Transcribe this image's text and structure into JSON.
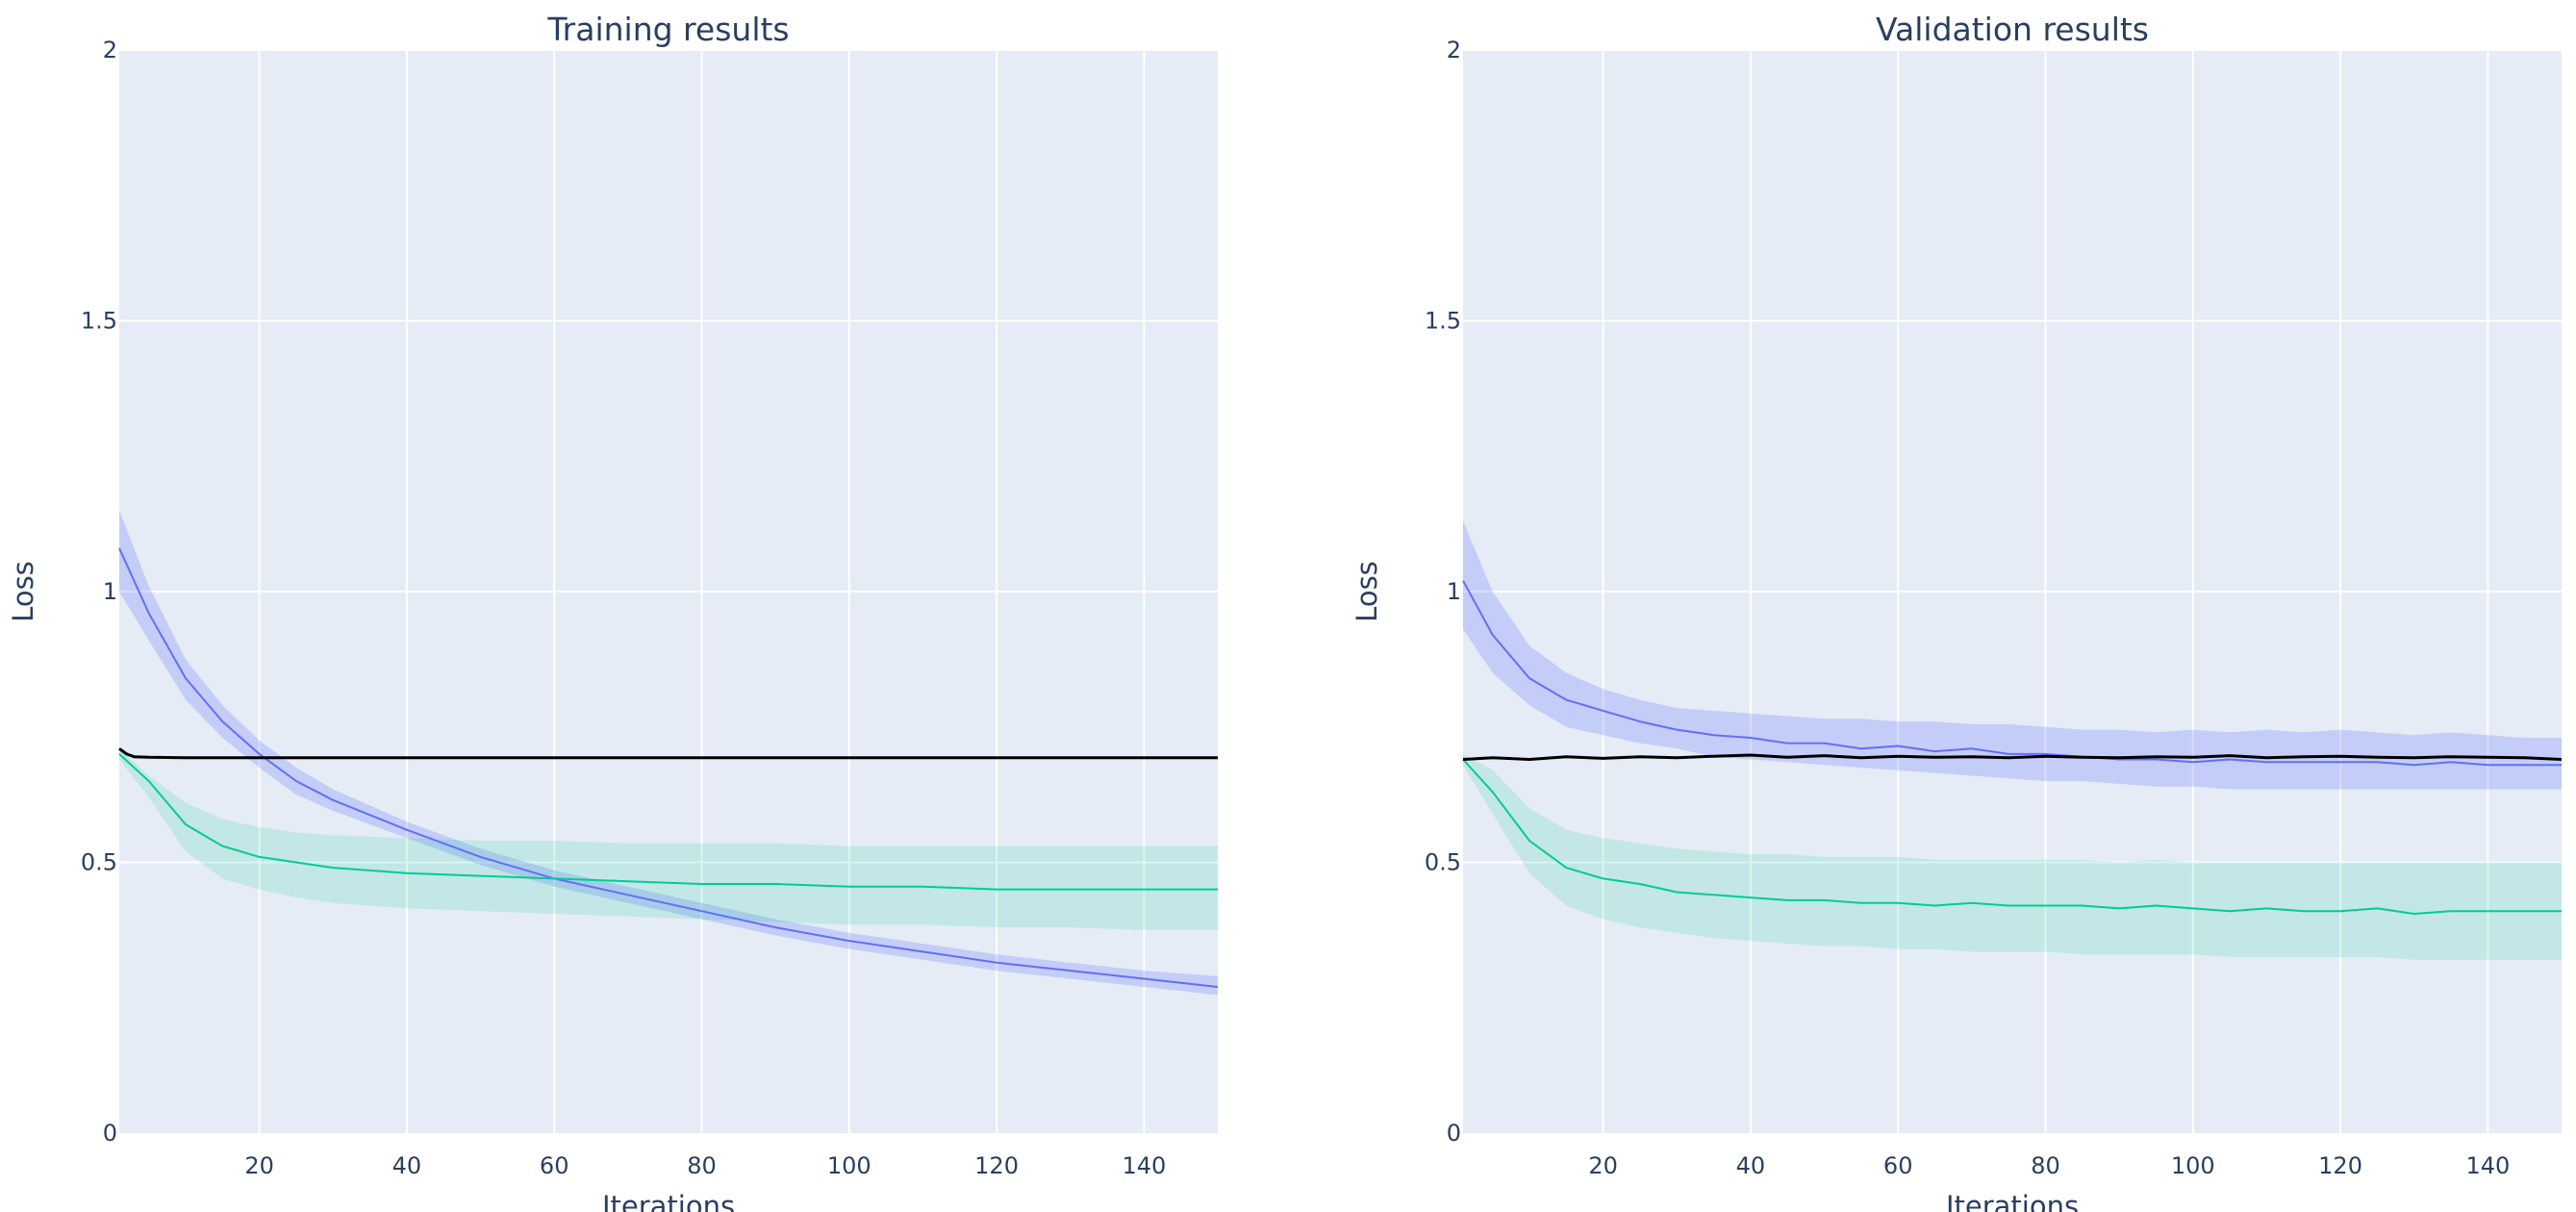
{
  "chart_data": [
    {
      "type": "line",
      "title": "Training results",
      "xlabel": "Iterations",
      "ylabel": "Loss",
      "xlim": [
        1,
        150
      ],
      "ylim": [
        0,
        2
      ],
      "xticks": [
        20,
        40,
        60,
        80,
        100,
        120,
        140
      ],
      "yticks": [
        0,
        0.5,
        1,
        1.5,
        2
      ],
      "ytick_labels": [
        "0",
        "0.5",
        "1",
        "1.5",
        "2"
      ],
      "grid": true,
      "legend": "none",
      "series": [
        {
          "color": "#636efa",
          "x": [
            1,
            5,
            10,
            15,
            20,
            25,
            30,
            40,
            50,
            60,
            70,
            80,
            90,
            100,
            110,
            120,
            130,
            140,
            150
          ],
          "y": [
            1.08,
            0.96,
            0.84,
            0.76,
            0.7,
            0.65,
            0.615,
            0.56,
            0.51,
            0.47,
            0.44,
            0.41,
            0.38,
            0.355,
            0.335,
            0.315,
            0.3,
            0.285,
            0.27
          ],
          "band_upper": [
            1.15,
            1.01,
            0.875,
            0.79,
            0.725,
            0.675,
            0.635,
            0.575,
            0.525,
            0.485,
            0.455,
            0.425,
            0.395,
            0.37,
            0.35,
            0.33,
            0.315,
            0.3,
            0.29
          ],
          "band_lower": [
            1.0,
            0.91,
            0.8,
            0.73,
            0.675,
            0.625,
            0.595,
            0.545,
            0.495,
            0.455,
            0.425,
            0.395,
            0.365,
            0.34,
            0.32,
            0.3,
            0.285,
            0.27,
            0.255
          ]
        },
        {
          "color": "#00cc96",
          "x": [
            1,
            5,
            10,
            15,
            20,
            25,
            30,
            40,
            50,
            60,
            70,
            80,
            90,
            100,
            110,
            120,
            130,
            140,
            150
          ],
          "y": [
            0.7,
            0.65,
            0.57,
            0.53,
            0.51,
            0.5,
            0.49,
            0.48,
            0.475,
            0.47,
            0.465,
            0.46,
            0.46,
            0.455,
            0.455,
            0.45,
            0.45,
            0.45,
            0.45
          ],
          "band_upper": [
            0.71,
            0.66,
            0.61,
            0.58,
            0.565,
            0.555,
            0.55,
            0.545,
            0.54,
            0.54,
            0.535,
            0.535,
            0.535,
            0.53,
            0.53,
            0.53,
            0.53,
            0.53,
            0.53
          ],
          "band_lower": [
            0.69,
            0.62,
            0.52,
            0.47,
            0.45,
            0.435,
            0.425,
            0.415,
            0.41,
            0.405,
            0.4,
            0.395,
            0.39,
            0.385,
            0.385,
            0.38,
            0.38,
            0.375,
            0.375
          ]
        },
        {
          "color": "#000000",
          "x": [
            1,
            2,
            3,
            5,
            10,
            20,
            40,
            60,
            80,
            100,
            120,
            140,
            150
          ],
          "y": [
            0.71,
            0.7,
            0.695,
            0.694,
            0.693,
            0.693,
            0.693,
            0.693,
            0.693,
            0.693,
            0.693,
            0.693,
            0.693
          ]
        }
      ]
    },
    {
      "type": "line",
      "title": "Validation results",
      "xlabel": "Iterations",
      "ylabel": "Loss",
      "xlim": [
        1,
        150
      ],
      "ylim": [
        0,
        2
      ],
      "xticks": [
        20,
        40,
        60,
        80,
        100,
        120,
        140
      ],
      "yticks": [
        0,
        0.5,
        1,
        1.5,
        2
      ],
      "ytick_labels": [
        "0",
        "0.5",
        "1",
        "1.5",
        "2"
      ],
      "grid": true,
      "legend": "none",
      "series": [
        {
          "color": "#636efa",
          "x": [
            1,
            5,
            10,
            15,
            20,
            25,
            30,
            35,
            40,
            45,
            50,
            55,
            60,
            65,
            70,
            75,
            80,
            85,
            90,
            95,
            100,
            105,
            110,
            115,
            120,
            125,
            130,
            135,
            140,
            145,
            150
          ],
          "y": [
            1.02,
            0.92,
            0.84,
            0.8,
            0.78,
            0.76,
            0.745,
            0.735,
            0.73,
            0.72,
            0.72,
            0.71,
            0.715,
            0.705,
            0.71,
            0.7,
            0.7,
            0.695,
            0.69,
            0.69,
            0.685,
            0.69,
            0.685,
            0.685,
            0.685,
            0.685,
            0.68,
            0.685,
            0.68,
            0.68,
            0.68
          ],
          "band_upper": [
            1.13,
            1.0,
            0.9,
            0.85,
            0.82,
            0.8,
            0.785,
            0.78,
            0.775,
            0.77,
            0.765,
            0.765,
            0.76,
            0.76,
            0.755,
            0.755,
            0.75,
            0.745,
            0.745,
            0.74,
            0.745,
            0.74,
            0.745,
            0.74,
            0.745,
            0.74,
            0.735,
            0.74,
            0.735,
            0.73,
            0.73
          ],
          "band_lower": [
            0.93,
            0.85,
            0.79,
            0.75,
            0.735,
            0.72,
            0.71,
            0.695,
            0.69,
            0.685,
            0.68,
            0.675,
            0.67,
            0.665,
            0.66,
            0.655,
            0.65,
            0.65,
            0.645,
            0.64,
            0.64,
            0.635,
            0.635,
            0.635,
            0.635,
            0.635,
            0.635,
            0.635,
            0.635,
            0.635,
            0.635
          ]
        },
        {
          "color": "#00cc96",
          "x": [
            1,
            5,
            10,
            15,
            20,
            25,
            30,
            35,
            40,
            45,
            50,
            55,
            60,
            65,
            70,
            75,
            80,
            85,
            90,
            95,
            100,
            105,
            110,
            115,
            120,
            125,
            130,
            135,
            140,
            145,
            150
          ],
          "y": [
            0.69,
            0.63,
            0.54,
            0.49,
            0.47,
            0.46,
            0.445,
            0.44,
            0.435,
            0.43,
            0.43,
            0.425,
            0.425,
            0.42,
            0.425,
            0.42,
            0.42,
            0.42,
            0.415,
            0.42,
            0.415,
            0.41,
            0.415,
            0.41,
            0.41,
            0.415,
            0.405,
            0.41,
            0.41,
            0.41,
            0.41
          ],
          "band_upper": [
            0.7,
            0.67,
            0.6,
            0.56,
            0.545,
            0.535,
            0.525,
            0.52,
            0.515,
            0.515,
            0.51,
            0.51,
            0.51,
            0.505,
            0.505,
            0.505,
            0.505,
            0.505,
            0.5,
            0.505,
            0.5,
            0.5,
            0.5,
            0.5,
            0.5,
            0.5,
            0.5,
            0.5,
            0.5,
            0.5,
            0.5
          ],
          "band_lower": [
            0.68,
            0.59,
            0.48,
            0.42,
            0.395,
            0.38,
            0.37,
            0.36,
            0.355,
            0.35,
            0.345,
            0.345,
            0.34,
            0.34,
            0.335,
            0.335,
            0.335,
            0.33,
            0.33,
            0.33,
            0.33,
            0.325,
            0.325,
            0.325,
            0.325,
            0.325,
            0.32,
            0.32,
            0.32,
            0.32,
            0.32
          ]
        },
        {
          "color": "#000000",
          "x": [
            1,
            5,
            10,
            15,
            20,
            25,
            30,
            35,
            40,
            45,
            50,
            55,
            60,
            65,
            70,
            75,
            80,
            85,
            90,
            95,
            100,
            105,
            110,
            115,
            120,
            125,
            130,
            135,
            140,
            145,
            150
          ],
          "y": [
            0.69,
            0.693,
            0.69,
            0.695,
            0.692,
            0.695,
            0.693,
            0.696,
            0.698,
            0.694,
            0.697,
            0.693,
            0.696,
            0.694,
            0.695,
            0.693,
            0.696,
            0.694,
            0.693,
            0.695,
            0.694,
            0.697,
            0.693,
            0.695,
            0.696,
            0.694,
            0.693,
            0.695,
            0.694,
            0.693,
            0.69
          ]
        }
      ]
    }
  ]
}
